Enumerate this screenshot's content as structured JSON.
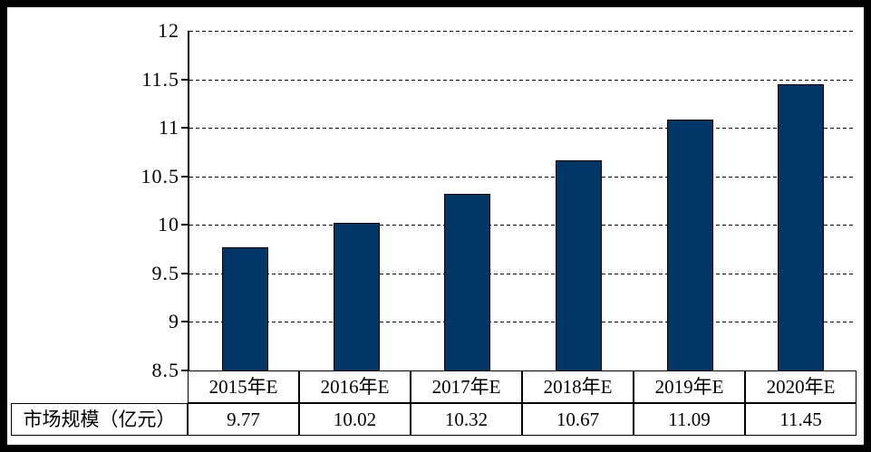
{
  "chart_data": {
    "type": "bar",
    "title": "",
    "categories": [
      "2015年E",
      "2016年E",
      "2017年E",
      "2018年E",
      "2019年E",
      "2020年E"
    ],
    "series": [
      {
        "name": "市场规模（亿元）",
        "values": [
          9.77,
          10.02,
          10.32,
          10.67,
          11.09,
          11.45
        ]
      }
    ],
    "value_labels": [
      "9.77",
      "10.02",
      "10.32",
      "10.67",
      "11.09",
      "11.45"
    ],
    "table_row_label": "市场规模（亿元）",
    "ylim": [
      8.5,
      12
    ],
    "yticks": [
      12,
      11.5,
      11,
      10.5,
      10,
      9.5,
      9,
      8.5
    ],
    "ytick_labels": [
      "12",
      "11.5",
      "11",
      "10.5",
      "10",
      "9.5",
      "9",
      "8.5"
    ],
    "xlabel": "",
    "ylabel": "",
    "grid": "horizontal-dashed",
    "legend": "none",
    "bar_color": "#003767",
    "bar_border_color": "#000000",
    "axis_color": "#000000",
    "frame_color": "#000000",
    "background_color": "#FFFFFF"
  }
}
